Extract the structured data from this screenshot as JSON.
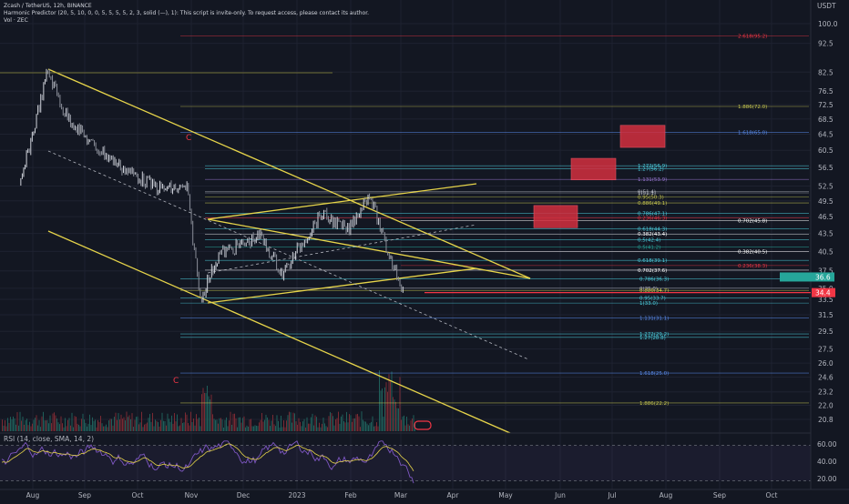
{
  "header": {
    "symbol_line": "Zcash / TetherUS, 12h, BINANCE",
    "indicator_line": "Harmonic Predictor (20, 5, 10, 0, 0, 5, 5, 5, 5, 2, 3, solid (—), 1): This script is invite-only. To request access, please contact its author.",
    "volume_line": "Vol · ZEC"
  },
  "price_axis": {
    "unit": "USDT",
    "ticks": [
      "100.0",
      "92.5",
      "82.5",
      "76.5",
      "72.5",
      "68.5",
      "64.5",
      "60.5",
      "56.5",
      "52.5",
      "49.5",
      "46.5",
      "43.5",
      "40.5",
      "37.5",
      "35.0",
      "33.5",
      "31.5",
      "29.5",
      "27.5",
      "26.0",
      "24.6",
      "23.2",
      "22.0",
      "20.8"
    ],
    "current_price": "34.4",
    "current_color": "#f23645",
    "label_green": "36.6",
    "label_green_color": "#26a69a"
  },
  "time_axis": {
    "ticks": [
      "Aug",
      "Sep",
      "Oct",
      "Nov",
      "Dec",
      "2023",
      "Feb",
      "Mar",
      "Apr",
      "May",
      "Jun",
      "Jul",
      "Aug",
      "Sep",
      "Oct"
    ]
  },
  "rsi_panel": {
    "label": "RSI (14, close, SMA, 14, 2)",
    "ticks": [
      "60.00",
      "40.00",
      "20.00"
    ]
  },
  "chart_data": {
    "type": "candlestick",
    "title": "Zcash / TetherUS, 12h, BINANCE",
    "y_scale": "log",
    "ylim": [
      19,
      110
    ],
    "annotations": [
      {
        "text": "C",
        "color": "#f23645"
      },
      {
        "text": "C",
        "color": "#f23645"
      }
    ],
    "fib_levels": [
      {
        "label": "2.618(95.2)",
        "color": "#f23645",
        "price": 95.2
      },
      {
        "label": "1.886(72.0)",
        "color": "#c8c850",
        "price": 72.0
      },
      {
        "label": "1.618(65.0)",
        "color": "#5b8def",
        "price": 65.0
      },
      {
        "label": "1.272(56.9)",
        "color": "#4dd0e1",
        "price": 56.9
      },
      {
        "label": "1.27(56.2)",
        "color": "#4dd0e1",
        "price": 56.2
      },
      {
        "label": "1.131(53.9)",
        "color": "#9575cd",
        "price": 53.9
      },
      {
        "label": "0(51.4)",
        "color": "#b2b5be",
        "price": 51.4
      },
      {
        "label": "1(51.1)",
        "color": "#b2b5be",
        "price": 51.1
      },
      {
        "label": "0.95(50.3)",
        "color": "#c8c850",
        "price": 50.3
      },
      {
        "label": "0.886(49.1)",
        "color": "#c8c850",
        "price": 49.1
      },
      {
        "label": "0.786(47.1)",
        "color": "#4dd0e1",
        "price": 47.1
      },
      {
        "label": "0.236(46.3)",
        "color": "#f23645",
        "price": 46.3
      },
      {
        "label": "0.702(45.8)",
        "color": "#ffffff",
        "price": 45.8
      },
      {
        "label": "0.618(44.3)",
        "color": "#4dd0e1",
        "price": 44.3
      },
      {
        "label": "0.382(43.4)",
        "color": "#ffffff",
        "price": 43.4
      },
      {
        "label": "0.5(42.4)",
        "color": "#4dd0e1",
        "price": 42.4
      },
      {
        "label": "0.5(41.2)",
        "color": "#26a69a",
        "price": 41.2
      },
      {
        "label": "0.382(40.5)",
        "color": "#ffffff",
        "price": 40.5
      },
      {
        "label": "0.618(39.1)",
        "color": "#4dd0e1",
        "price": 39.1
      },
      {
        "label": "0.236(38.3)",
        "color": "#f23645",
        "price": 38.3
      },
      {
        "label": "0.702(37.6)",
        "color": "#ffffff",
        "price": 37.6
      },
      {
        "label": "0.786(36.3)",
        "color": "#4dd0e1",
        "price": 36.3
      },
      {
        "label": "0(35.0)",
        "color": "#b2b5be",
        "price": 35.0
      },
      {
        "label": "0.886(34.7)",
        "color": "#c8c850",
        "price": 34.7
      },
      {
        "label": "0.95(33.7)",
        "color": "#4dd0e1",
        "price": 33.7
      },
      {
        "label": "1(33.0)",
        "color": "#4dd0e1",
        "price": 33.0
      },
      {
        "label": "1.131(31.1)",
        "color": "#5b8def",
        "price": 31.1
      },
      {
        "label": "1.272(29.2)",
        "color": "#4dd0e1",
        "price": 29.2
      },
      {
        "label": "1.27(28.8)",
        "color": "#4dd0e1",
        "price": 28.8
      },
      {
        "label": "1.618(25.0)",
        "color": "#5b8def",
        "price": 25.0
      },
      {
        "label": "1.886(22.2)",
        "color": "#c8c850",
        "price": 22.2
      }
    ],
    "target_boxes": [
      {
        "price_low": 44.5,
        "price_high": 48.6
      },
      {
        "price_low": 53.8,
        "price_high": 58.6
      },
      {
        "price_low": 61.2,
        "price_high": 66.8
      }
    ],
    "price_series_anchors": [
      {
        "date": "2022-07-24",
        "close": 52
      },
      {
        "date": "2022-08-10",
        "close": 83
      },
      {
        "date": "2022-08-20",
        "close": 70
      },
      {
        "date": "2022-09-05",
        "close": 62
      },
      {
        "date": "2022-09-25",
        "close": 56
      },
      {
        "date": "2022-10-15",
        "close": 52
      },
      {
        "date": "2022-11-01",
        "close": 52
      },
      {
        "date": "2022-11-09",
        "close": 33.5
      },
      {
        "date": "2022-11-20",
        "close": 40
      },
      {
        "date": "2022-12-15",
        "close": 43
      },
      {
        "date": "2022-12-28",
        "close": 37
      },
      {
        "date": "2023-01-20",
        "close": 47
      },
      {
        "date": "2023-02-05",
        "close": 44
      },
      {
        "date": "2023-02-18",
        "close": 51
      },
      {
        "date": "2023-02-28",
        "close": 41
      },
      {
        "date": "2023-03-10",
        "close": 35
      }
    ],
    "rsi_range": [
      20,
      80
    ]
  }
}
